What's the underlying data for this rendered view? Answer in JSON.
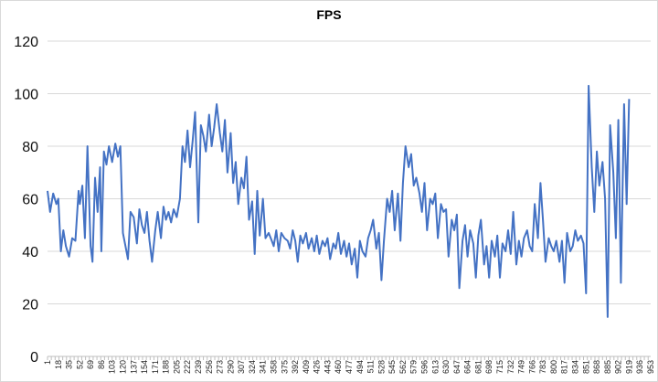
{
  "chart_data": {
    "type": "line",
    "title": "FPS",
    "xlabel": "",
    "ylabel": "",
    "ylim": [
      0,
      120
    ],
    "yticks": [
      0,
      20,
      40,
      60,
      80,
      100,
      120
    ],
    "xlim": [
      1,
      953
    ],
    "xticks": [
      1,
      18,
      35,
      52,
      69,
      86,
      103,
      120,
      137,
      154,
      171,
      188,
      205,
      222,
      239,
      256,
      273,
      290,
      307,
      324,
      341,
      358,
      375,
      392,
      409,
      426,
      443,
      460,
      477,
      494,
      511,
      528,
      545,
      562,
      579,
      596,
      613,
      630,
      647,
      664,
      681,
      698,
      715,
      732,
      749,
      766,
      783,
      800,
      817,
      834,
      851,
      868,
      885,
      902,
      919,
      936,
      953
    ],
    "grid": "horizontal",
    "legend": "none",
    "line_color": "#4472c4",
    "series": [
      {
        "x": [
          1,
          5,
          10,
          15,
          18,
          22,
          26,
          30,
          35,
          40,
          45,
          50,
          52,
          56,
          60,
          64,
          69,
          72,
          76,
          80,
          84,
          86,
          90,
          94,
          98,
          103,
          108,
          112,
          116,
          120,
          124,
          128,
          132,
          137,
          142,
          146,
          150,
          154,
          158,
          162,
          166,
          171,
          175,
          180,
          184,
          188,
          192,
          196,
          200,
          205,
          210,
          214,
          218,
          222,
          226,
          230,
          234,
          239,
          243,
          247,
          251,
          256,
          260,
          264,
          268,
          273,
          277,
          281,
          285,
          290,
          294,
          298,
          302,
          307,
          311,
          315,
          319,
          324,
          328,
          332,
          336,
          341,
          345,
          350,
          355,
          358,
          362,
          366,
          370,
          375,
          380,
          384,
          388,
          392,
          396,
          400,
          404,
          409,
          413,
          418,
          422,
          426,
          430,
          435,
          439,
          443,
          447,
          452,
          456,
          460,
          464,
          469,
          473,
          477,
          481,
          486,
          490,
          494,
          498,
          503,
          507,
          511,
          515,
          520,
          524,
          528,
          532,
          537,
          541,
          545,
          549,
          554,
          558,
          562,
          566,
          571,
          575,
          579,
          583,
          588,
          592,
          596,
          600,
          605,
          609,
          613,
          617,
          622,
          626,
          630,
          634,
          639,
          643,
          647,
          651,
          656,
          660,
          664,
          668,
          673,
          677,
          681,
          685,
          690,
          694,
          698,
          702,
          707,
          711,
          715,
          719,
          724,
          728,
          732,
          736,
          741,
          745,
          749,
          753,
          758,
          762,
          766,
          770,
          775,
          779,
          783,
          787,
          792,
          796,
          800,
          804,
          809,
          813,
          817,
          821,
          826,
          830,
          834,
          838,
          843,
          847,
          851,
          855,
          860,
          864,
          868,
          872,
          877,
          881,
          885,
          889,
          894,
          898,
          902,
          906,
          911,
          915,
          919
        ],
        "values": [
          63,
          55,
          62,
          58,
          60,
          40,
          48,
          42,
          38,
          45,
          44,
          63,
          58,
          65,
          45,
          80,
          42,
          36,
          68,
          55,
          72,
          40,
          78,
          73,
          80,
          74,
          81,
          76,
          80,
          47,
          42,
          37,
          55,
          53,
          43,
          56,
          50,
          47,
          55,
          44,
          36,
          48,
          55,
          45,
          57,
          52,
          55,
          51,
          56,
          53,
          60,
          80,
          74,
          86,
          72,
          82,
          93,
          51,
          88,
          84,
          78,
          92,
          80,
          87,
          96,
          85,
          78,
          90,
          70,
          85,
          66,
          74,
          58,
          68,
          64,
          76,
          52,
          59,
          39,
          63,
          46,
          60,
          45,
          47,
          44,
          42,
          48,
          40,
          47,
          45,
          44,
          41,
          48,
          44,
          36,
          46,
          43,
          47,
          41,
          45,
          40,
          46,
          39,
          44,
          42,
          45,
          37,
          43,
          41,
          47,
          39,
          44,
          38,
          43,
          35,
          41,
          30,
          44,
          40,
          38,
          45,
          48,
          52,
          41,
          47,
          29,
          44,
          60,
          55,
          63,
          48,
          62,
          44,
          66,
          80,
          72,
          77,
          65,
          68,
          62,
          55,
          66,
          48,
          60,
          58,
          62,
          45,
          58,
          55,
          56,
          38,
          52,
          48,
          54,
          26,
          44,
          50,
          38,
          48,
          43,
          30,
          46,
          52,
          35,
          42,
          30,
          44,
          38,
          46,
          30,
          43,
          40,
          48,
          39,
          55,
          35,
          44,
          38,
          45,
          48,
          42,
          40,
          58,
          45,
          66,
          52,
          36,
          45,
          42,
          40,
          44,
          36,
          44,
          28,
          47,
          40,
          42,
          48,
          44,
          46,
          43,
          24,
          103,
          72,
          55,
          78,
          65,
          74,
          60,
          15,
          88,
          70,
          45,
          90,
          28,
          96,
          58,
          98
        ]
      }
    ]
  }
}
